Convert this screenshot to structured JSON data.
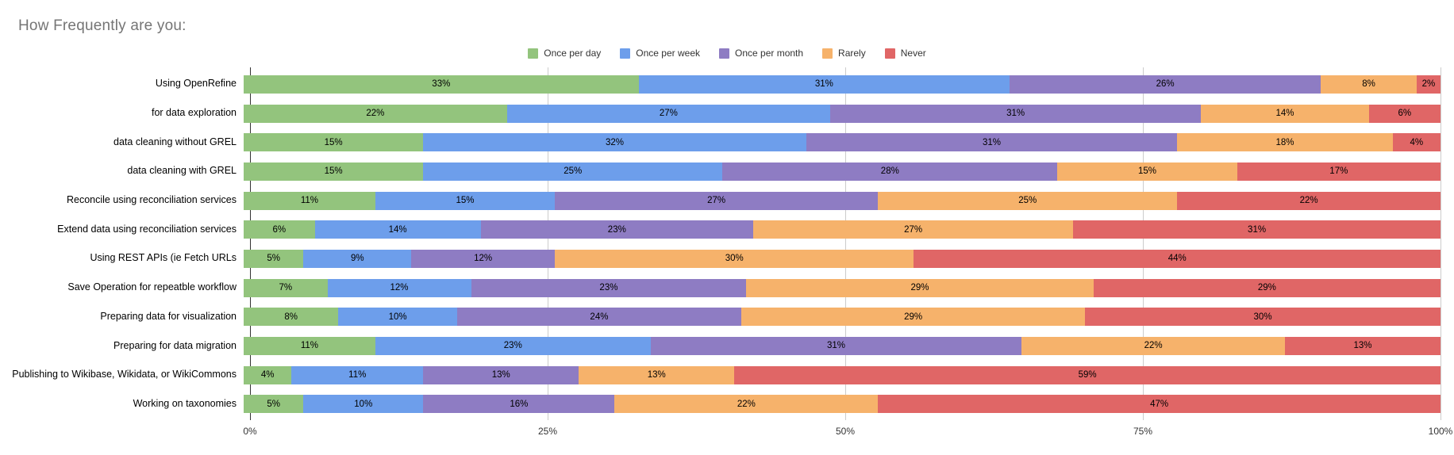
{
  "title": "How Frequently are you:",
  "colors": {
    "title_text": "#757575",
    "gridline": "#cccccc",
    "axis_line": "#333333",
    "bar_value_label": "#000000",
    "once_per_day": "#93C47D",
    "once_per_week": "#6D9EEB",
    "once_per_month": "#8E7CC3",
    "rarely": "#F6B26B",
    "never": "#E06666"
  },
  "chart_data": {
    "type": "bar",
    "orientation": "horizontal",
    "stacked": true,
    "stacked_unit": "percent",
    "title": "How Frequently are you:",
    "legend_position": "top-center",
    "grid": true,
    "xlim": [
      0,
      100
    ],
    "x_ticks": [
      0,
      25,
      50,
      75,
      100
    ],
    "x_tick_labels": [
      "0%",
      "25%",
      "50%",
      "75%",
      "100%"
    ],
    "data_labels": "percent-inside-segment",
    "categories": [
      "Using OpenRefine",
      "for data exploration",
      "data cleaning without GREL",
      "data cleaning with GREL",
      "Reconcile using reconciliation services",
      "Extend data using reconciliation services",
      "Using REST APIs (ie Fetch URLs",
      "Save Operation for repeatble workflow",
      "Preparing data for visualization",
      "Preparing for data migration",
      "Publishing to Wikibase, Wikidata, or WikiCommons",
      "Working on taxonomies"
    ],
    "series": [
      {
        "name": "Once per day",
        "color": "#93C47D",
        "values": [
          33,
          22,
          15,
          15,
          11,
          6,
          5,
          7,
          8,
          11,
          4,
          5
        ]
      },
      {
        "name": "Once per week",
        "color": "#6D9EEB",
        "values": [
          31,
          27,
          32,
          25,
          15,
          14,
          9,
          12,
          10,
          23,
          11,
          10
        ]
      },
      {
        "name": "Once per month",
        "color": "#8E7CC3",
        "values": [
          26,
          31,
          31,
          28,
          27,
          23,
          12,
          23,
          24,
          31,
          13,
          16
        ]
      },
      {
        "name": "Rarely",
        "color": "#F6B26B",
        "values": [
          8,
          14,
          18,
          15,
          25,
          27,
          30,
          29,
          29,
          22,
          13,
          22
        ]
      },
      {
        "name": "Never",
        "color": "#E06666",
        "values": [
          2,
          6,
          4,
          17,
          22,
          31,
          44,
          29,
          30,
          13,
          59,
          47
        ]
      }
    ]
  }
}
